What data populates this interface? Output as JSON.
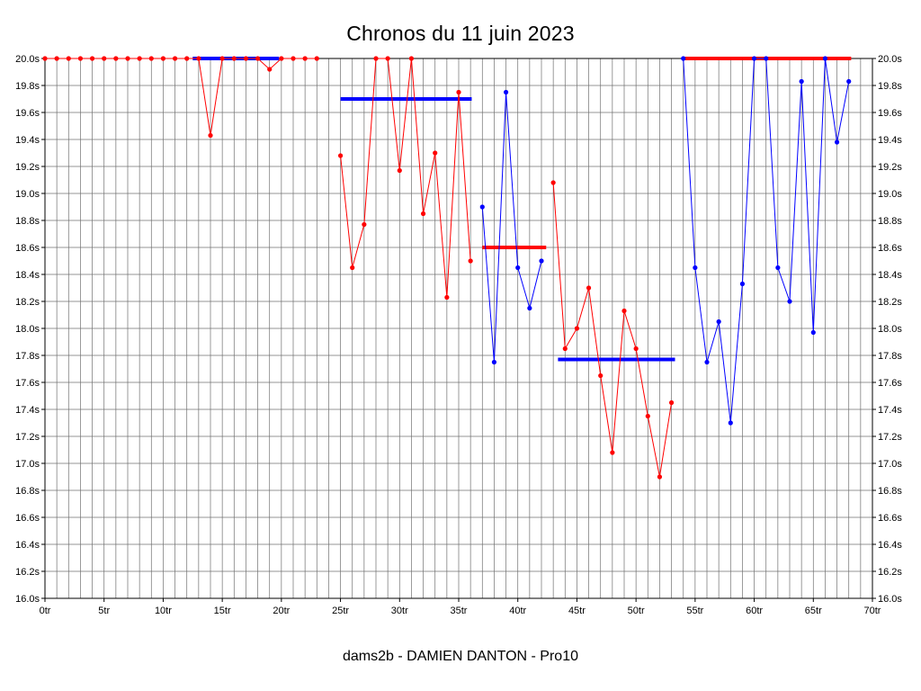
{
  "chart_data": {
    "type": "line",
    "title": "Chronos du 11 juin 2023",
    "caption": "dams2b - DAMIEN DANTON - Pro10",
    "xlim": [
      0,
      70
    ],
    "ylim": [
      16.0,
      20.0
    ],
    "x_tick_step": 5,
    "y_tick_step": 0.2,
    "x_grid_step": 1,
    "grid": true,
    "legend": "none",
    "x_ticks": [
      "0tr",
      "5tr",
      "10tr",
      "15tr",
      "20tr",
      "25tr",
      "30tr",
      "35tr",
      "40tr",
      "45tr",
      "50tr",
      "55tr",
      "60tr",
      "65tr",
      "70tr"
    ],
    "y_ticks": [
      "20.0s",
      "19.8s",
      "19.6s",
      "19.4s",
      "19.2s",
      "19.0s",
      "18.8s",
      "18.6s",
      "18.4s",
      "18.2s",
      "18.0s",
      "17.8s",
      "17.6s",
      "17.4s",
      "17.2s",
      "17.0s",
      "16.8s",
      "16.6s",
      "16.4s",
      "16.2s",
      "16.0s"
    ],
    "colors": {
      "series_red": "#ff0000",
      "series_blue": "#0000ff",
      "grid": "#707070",
      "axis": "#000000",
      "text": "#000000",
      "background": "#ffffff"
    },
    "series": [
      {
        "name": "run1-red",
        "color": "#ff0000",
        "points": [
          [
            0,
            20
          ],
          [
            1,
            20
          ],
          [
            2,
            20
          ],
          [
            3,
            20
          ],
          [
            4,
            20
          ],
          [
            5,
            20
          ],
          [
            6,
            20
          ],
          [
            7,
            20
          ],
          [
            8,
            20
          ],
          [
            9,
            20
          ],
          [
            10,
            20
          ],
          [
            11,
            20
          ],
          [
            12,
            20
          ],
          [
            13,
            20
          ],
          [
            14,
            19.43
          ],
          [
            15,
            20
          ],
          [
            16,
            20
          ],
          [
            17,
            20
          ],
          [
            18,
            20
          ],
          [
            19,
            19.92
          ],
          [
            20,
            20
          ],
          [
            21,
            20
          ],
          [
            22,
            20
          ],
          [
            23,
            20
          ]
        ]
      },
      {
        "name": "run2-red",
        "color": "#ff0000",
        "points": [
          [
            25,
            19.28
          ],
          [
            26,
            18.45
          ],
          [
            27,
            18.77
          ],
          [
            28,
            20
          ],
          [
            29,
            20
          ],
          [
            30,
            19.17
          ],
          [
            31,
            20
          ],
          [
            32,
            18.85
          ],
          [
            33,
            19.3
          ],
          [
            34,
            18.23
          ],
          [
            35,
            19.75
          ],
          [
            36,
            18.5
          ]
        ]
      },
      {
        "name": "run3-blue",
        "color": "#0000ff",
        "points": [
          [
            37,
            18.9
          ],
          [
            38,
            17.75
          ],
          [
            39,
            19.75
          ],
          [
            40,
            18.45
          ],
          [
            41,
            18.15
          ],
          [
            42,
            18.5
          ]
        ]
      },
      {
        "name": "run4-red",
        "color": "#ff0000",
        "points": [
          [
            43,
            19.08
          ],
          [
            44,
            17.85
          ],
          [
            45,
            18.0
          ],
          [
            46,
            18.3
          ],
          [
            47,
            17.65
          ],
          [
            48,
            17.08
          ],
          [
            49,
            18.13
          ],
          [
            50,
            17.85
          ],
          [
            51,
            17.35
          ],
          [
            52,
            16.9
          ],
          [
            53,
            17.45
          ]
        ]
      },
      {
        "name": "run5-blue",
        "color": "#0000ff",
        "points": [
          [
            54,
            20
          ],
          [
            55,
            18.45
          ],
          [
            56,
            17.75
          ],
          [
            57,
            18.05
          ],
          [
            58,
            17.3
          ],
          [
            59,
            18.33
          ],
          [
            60,
            20
          ],
          [
            61,
            20
          ],
          [
            62,
            18.45
          ],
          [
            63,
            18.2
          ],
          [
            64,
            19.83
          ],
          [
            65,
            17.97
          ],
          [
            66,
            20
          ],
          [
            67,
            19.38
          ],
          [
            68,
            19.83
          ]
        ]
      }
    ],
    "average_bars": [
      {
        "name": "avg-run1",
        "color": "#0000ff",
        "time": 20.0,
        "from": 12.5,
        "to": 19.8
      },
      {
        "name": "avg-run2",
        "color": "#0000ff",
        "time": 19.7,
        "from": 25.0,
        "to": 36.1
      },
      {
        "name": "avg-run3",
        "color": "#ff0000",
        "time": 18.6,
        "from": 37.0,
        "to": 42.4
      },
      {
        "name": "avg-run4",
        "color": "#0000ff",
        "time": 17.77,
        "from": 43.4,
        "to": 53.3
      },
      {
        "name": "avg-run5",
        "color": "#ff0000",
        "time": 20.0,
        "from": 54.0,
        "to": 68.2
      }
    ]
  }
}
